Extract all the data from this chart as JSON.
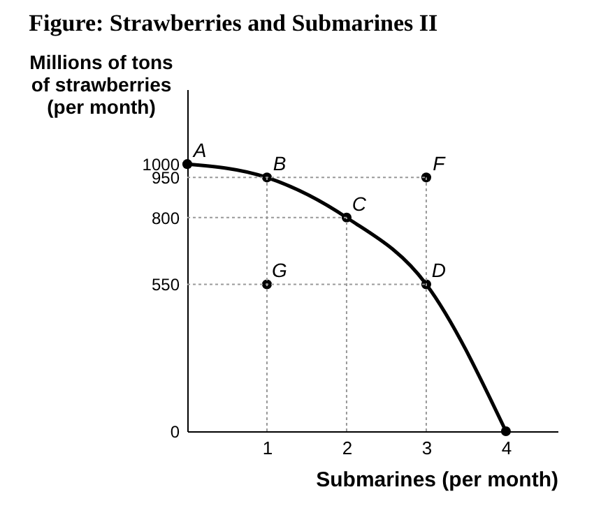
{
  "chart_data": {
    "type": "line",
    "title": "Figure: Strawberries and Submarines II",
    "xlabel": "Submarines (per month)",
    "ylabel": "Millions of tons\nof strawberries\n(per month)",
    "x": [
      0,
      1,
      2,
      3,
      4
    ],
    "series": [
      {
        "color": "#000000",
        "values": [
          1000,
          950,
          800,
          550,
          0
        ],
        "marker": "circle",
        "line_style": "solid"
      },
      {
        "type": "scatter",
        "color": "#000000",
        "x": [
          3,
          1
        ],
        "values": [
          950,
          550
        ],
        "marker": "circle"
      },
      {
        "color": "#999999",
        "x": [
          0,
          3
        ],
        "values": [
          950,
          950
        ],
        "line_style": "dotted",
        "marker": "none"
      },
      {
        "color": "#999999",
        "x": [
          0,
          2
        ],
        "values": [
          800,
          800
        ],
        "line_style": "dotted",
        "marker": "none"
      },
      {
        "color": "#999999",
        "x": [
          0,
          3
        ],
        "values": [
          550,
          550
        ],
        "line_style": "dotted",
        "marker": "none"
      },
      {
        "color": "#999999",
        "x": [
          1,
          1
        ],
        "values": [
          0,
          950
        ],
        "line_style": "dotted",
        "marker": "none"
      },
      {
        "color": "#999999",
        "x": [
          2,
          2
        ],
        "values": [
          0,
          800
        ],
        "line_style": "dotted",
        "marker": "none"
      },
      {
        "color": "#999999",
        "x": [
          3,
          3
        ],
        "values": [
          0,
          950
        ],
        "line_style": "dotted",
        "marker": "none"
      }
    ],
    "annotations": [
      {
        "text": "A",
        "x": 0,
        "y": 1000
      },
      {
        "text": "B",
        "x": 1,
        "y": 950
      },
      {
        "text": "C",
        "x": 2,
        "y": 800
      },
      {
        "text": "D",
        "x": 3,
        "y": 550
      },
      {
        "text": "F",
        "x": 3,
        "y": 950
      },
      {
        "text": "G",
        "x": 1,
        "y": 550
      }
    ],
    "xlim": [
      0,
      4.65
    ],
    "ylim": [
      0,
      1280
    ],
    "xticks": [
      1,
      2,
      3,
      4
    ],
    "yticks": [
      0,
      550,
      800,
      950,
      1000
    ]
  }
}
